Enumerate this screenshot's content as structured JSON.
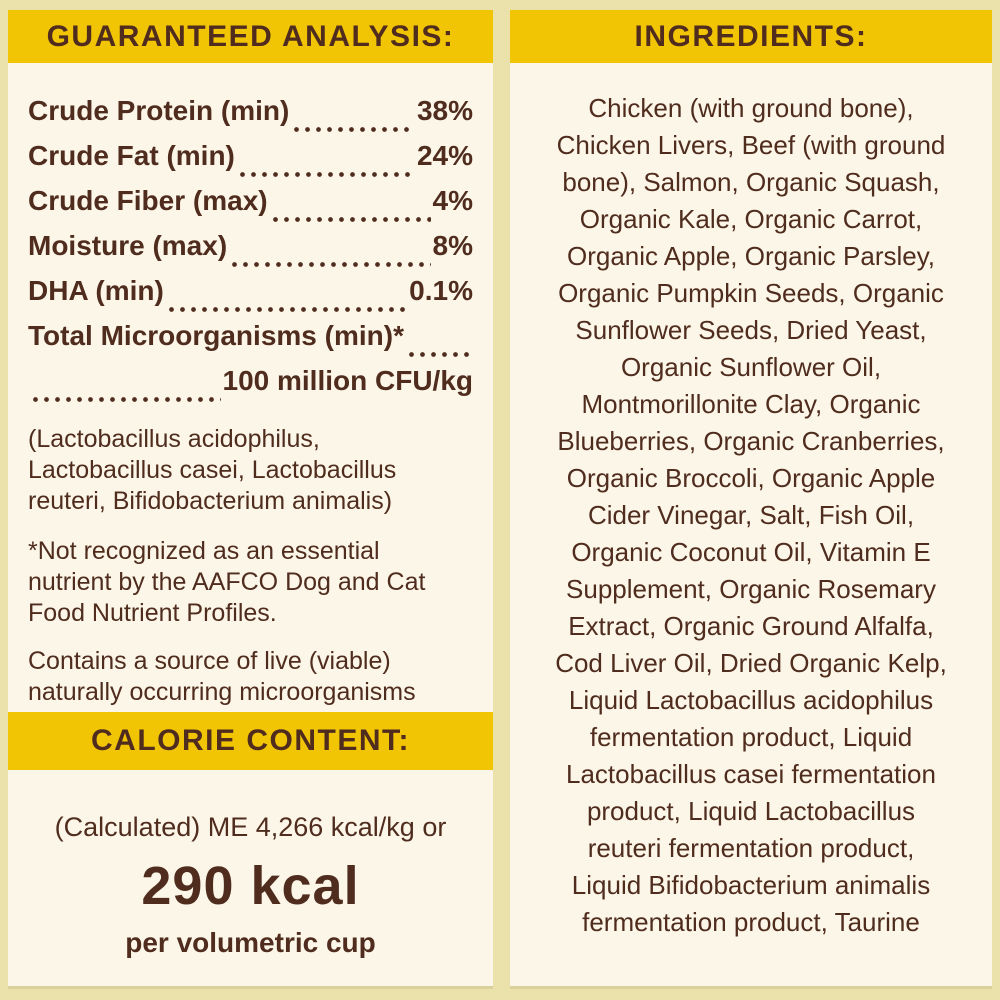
{
  "colors": {
    "background": "#EAE1AB",
    "panel": "#FBF6E7",
    "header_bar": "#F2C504",
    "text": "#4F2C1E"
  },
  "guaranteed_analysis": {
    "title": "GUARANTEED ANALYSIS:",
    "rows": [
      {
        "label": "Crude Protein (min)",
        "value": "38%"
      },
      {
        "label": "Crude Fat (min)",
        "value": "24%"
      },
      {
        "label": "Crude Fiber (max)",
        "value": "4%"
      },
      {
        "label": "Moisture (max)",
        "value": "8%"
      },
      {
        "label": "DHA (min)",
        "value": "0.1%"
      }
    ],
    "microorganisms": {
      "label": "Total Microorganisms (min)*",
      "value": "100 million CFU/kg"
    },
    "species_note": [
      "(Lactobacillus acidophilus,",
      "Lactobacillus casei, Lactobacillus",
      "reuteri, Bifidobacterium animalis)"
    ],
    "footnote": [
      "*Not recognized as an essential",
      "nutrient by the AAFCO Dog and Cat",
      "Food Nutrient Profiles."
    ],
    "contains_note": [
      "Contains a source of live (viable)",
      "naturally occurring microorganisms"
    ]
  },
  "calorie_content": {
    "title": "CALORIE CONTENT:",
    "calculated_line": "(Calculated) ME 4,266 kcal/kg or",
    "kcal_value": "290 kcal",
    "kcal_unit": "per volumetric cup"
  },
  "ingredients": {
    "title": "INGREDIENTS:",
    "lines": [
      "Chicken (with ground bone),",
      "Chicken Livers, Beef (with ground",
      "bone), Salmon, Organic Squash,",
      "Organic Kale, Organic Carrot,",
      "Organic Apple, Organic Parsley,",
      "Organic Pumpkin Seeds, Organic",
      "Sunflower Seeds, Dried Yeast,",
      "Organic Sunflower Oil,",
      "Montmorillonite Clay, Organic",
      "Blueberries, Organic Cranberries,",
      "Organic Broccoli, Organic Apple",
      "Cider Vinegar, Salt, Fish Oil,",
      "Organic Coconut Oil, Vitamin E",
      "Supplement, Organic Rosemary",
      "Extract, Organic Ground Alfalfa,",
      "Cod Liver Oil, Dried Organic Kelp,",
      "Liquid Lactobacillus acidophilus",
      "fermentation product, Liquid",
      "Lactobacillus casei fermentation",
      "product, Liquid Lactobacillus",
      "reuteri fermentation product,",
      "Liquid Bifidobacterium animalis",
      "fermentation product, Taurine"
    ]
  }
}
